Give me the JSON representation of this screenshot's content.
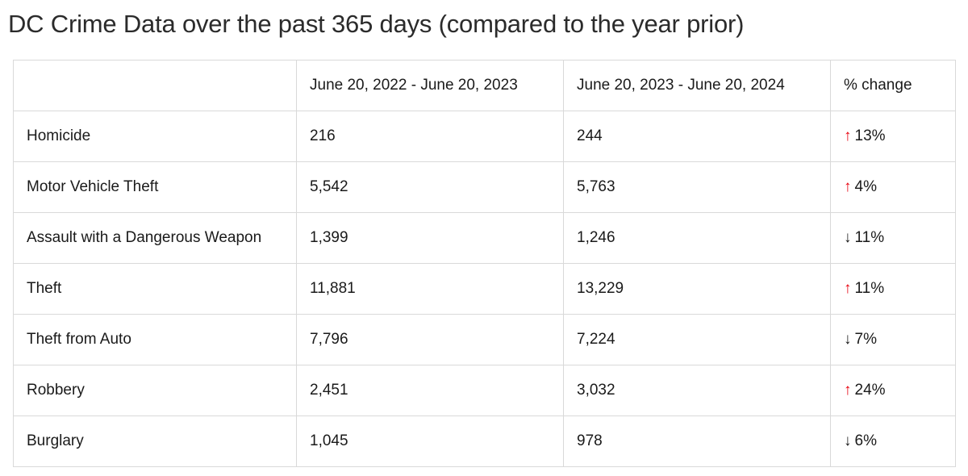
{
  "title": "DC Crime Data over the past 365 days (compared to the year prior)",
  "colors": {
    "increase": "#e8000d",
    "decrease": "#1a1a1a",
    "border": "#d9d9d9"
  },
  "table": {
    "headers": [
      "",
      "June 20, 2022 - June 20, 2023",
      "June 20, 2023 - June 20, 2024",
      "% change"
    ],
    "rows": [
      {
        "crime": "Homicide",
        "period1": "216",
        "period2": "244",
        "direction": "up",
        "arrow": "↑",
        "change": "13%"
      },
      {
        "crime": "Motor Vehicle Theft",
        "period1": "5,542",
        "period2": "5,763",
        "direction": "up",
        "arrow": "↑",
        "change": "4%"
      },
      {
        "crime": "Assault with a Dangerous Weapon",
        "period1": "1,399",
        "period2": "1,246",
        "direction": "down",
        "arrow": "↓",
        "change": "11%"
      },
      {
        "crime": "Theft",
        "period1": "11,881",
        "period2": "13,229",
        "direction": "up",
        "arrow": "↑",
        "change": "11%"
      },
      {
        "crime": "Theft from Auto",
        "period1": "7,796",
        "period2": "7,224",
        "direction": "down",
        "arrow": "↓",
        "change": "7%"
      },
      {
        "crime": "Robbery",
        "period1": "2,451",
        "period2": "3,032",
        "direction": "up",
        "arrow": "↑",
        "change": "24%"
      },
      {
        "crime": "Burglary",
        "period1": "1,045",
        "period2": "978",
        "direction": "down",
        "arrow": "↓",
        "change": "6%"
      }
    ]
  }
}
